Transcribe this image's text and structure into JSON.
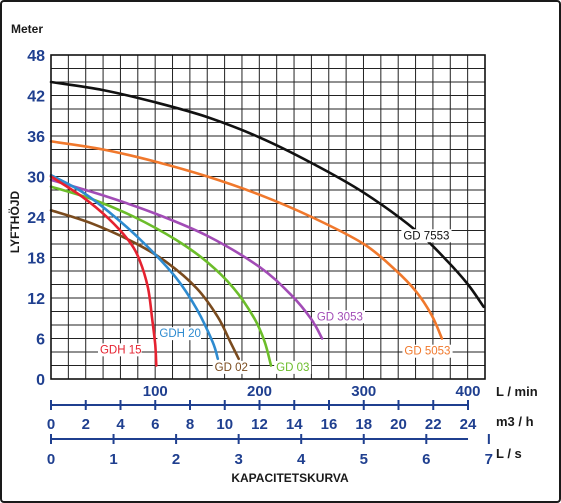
{
  "chart_data": {
    "type": "line",
    "y_unit": "Meter",
    "ylabel": "LYFTHÖJD",
    "xlabel": "KAPACITETSKURVA",
    "y_ticks": [
      "0",
      "6",
      "12",
      "18",
      "24",
      "30",
      "36",
      "42",
      "48"
    ],
    "ylim": [
      0,
      48
    ],
    "xlim_l_min": [
      0,
      400
    ],
    "x_axes": [
      {
        "unit": "L / min",
        "ticks": [
          "100",
          "200",
          "300",
          "400"
        ],
        "values": [
          100,
          200,
          300,
          400
        ],
        "max": 400,
        "show_zero": false
      },
      {
        "unit": "m3 / h",
        "ticks": [
          "0",
          "2",
          "4",
          "6",
          "8",
          "10",
          "12",
          "14",
          "16",
          "18",
          "20",
          "22",
          "24"
        ],
        "values": [
          0,
          2,
          4,
          6,
          8,
          10,
          12,
          14,
          16,
          18,
          20,
          22,
          24
        ],
        "max": 24
      },
      {
        "unit": "L / s",
        "ticks": [
          "0",
          "1",
          "2",
          "3",
          "4",
          "5",
          "6",
          "7"
        ],
        "values": [
          0,
          1,
          2,
          3,
          4,
          5,
          6,
          7
        ],
        "max": 6.667
      }
    ],
    "grid": true,
    "series": [
      {
        "name": "GD 7553",
        "color": "#111111",
        "label_at": [
          338,
          20.7
        ],
        "points": [
          [
            0,
            44
          ],
          [
            50,
            42.8
          ],
          [
            100,
            41
          ],
          [
            150,
            38.8
          ],
          [
            200,
            35.8
          ],
          [
            250,
            32
          ],
          [
            300,
            27.6
          ],
          [
            350,
            22
          ],
          [
            380,
            17.5
          ],
          [
            400,
            14
          ],
          [
            415,
            10.7
          ]
        ]
      },
      {
        "name": "GD 5053",
        "color": "#f0782c",
        "label_at": [
          339,
          3.6
        ],
        "points": [
          [
            0,
            35.2
          ],
          [
            50,
            34
          ],
          [
            100,
            32.2
          ],
          [
            150,
            30
          ],
          [
            200,
            27.3
          ],
          [
            250,
            24
          ],
          [
            300,
            20
          ],
          [
            330,
            16.2
          ],
          [
            350,
            13
          ],
          [
            365,
            9.5
          ],
          [
            375,
            6
          ]
        ]
      },
      {
        "name": "GD 3053",
        "color": "#a24cb6",
        "label_at": [
          255,
          8.7
        ],
        "points": [
          [
            0,
            29.5
          ],
          [
            50,
            27.2
          ],
          [
            100,
            24.5
          ],
          [
            150,
            21.2
          ],
          [
            200,
            16.6
          ],
          [
            230,
            12.5
          ],
          [
            250,
            8.8
          ],
          [
            260,
            6
          ]
        ]
      },
      {
        "name": "GD 03",
        "color": "#6cbd2a",
        "label_at": [
          216,
          1.2
        ],
        "points": [
          [
            0,
            28.5
          ],
          [
            40,
            26.6
          ],
          [
            80,
            24
          ],
          [
            120,
            20.6
          ],
          [
            150,
            17.3
          ],
          [
            175,
            13.5
          ],
          [
            195,
            9
          ],
          [
            205,
            5.5
          ],
          [
            211,
            2
          ]
        ]
      },
      {
        "name": "GD 02",
        "color": "#7a4b1e",
        "label_at": [
          157,
          1.2
        ],
        "points": [
          [
            0,
            25
          ],
          [
            40,
            23
          ],
          [
            80,
            20.2
          ],
          [
            110,
            17.4
          ],
          [
            140,
            13.4
          ],
          [
            160,
            9.2
          ],
          [
            172,
            5.5
          ],
          [
            180,
            3
          ]
        ]
      },
      {
        "name": "GDH 20",
        "color": "#2e8bd0",
        "label_at": [
          104,
          6.2
        ],
        "points": [
          [
            0,
            30.2
          ],
          [
            30,
            27.7
          ],
          [
            60,
            24.2
          ],
          [
            90,
            20
          ],
          [
            120,
            15
          ],
          [
            140,
            10.3
          ],
          [
            155,
            5.5
          ],
          [
            160,
            3
          ]
        ]
      },
      {
        "name": "GDH 15",
        "color": "#e52230",
        "label_at": [
          47,
          3.8
        ],
        "points": [
          [
            0,
            30
          ],
          [
            30,
            27
          ],
          [
            55,
            23.8
          ],
          [
            75,
            20.4
          ],
          [
            85,
            17.6
          ],
          [
            93,
            13.5
          ],
          [
            97,
            9
          ],
          [
            100,
            5
          ],
          [
            101,
            2
          ]
        ]
      }
    ]
  }
}
